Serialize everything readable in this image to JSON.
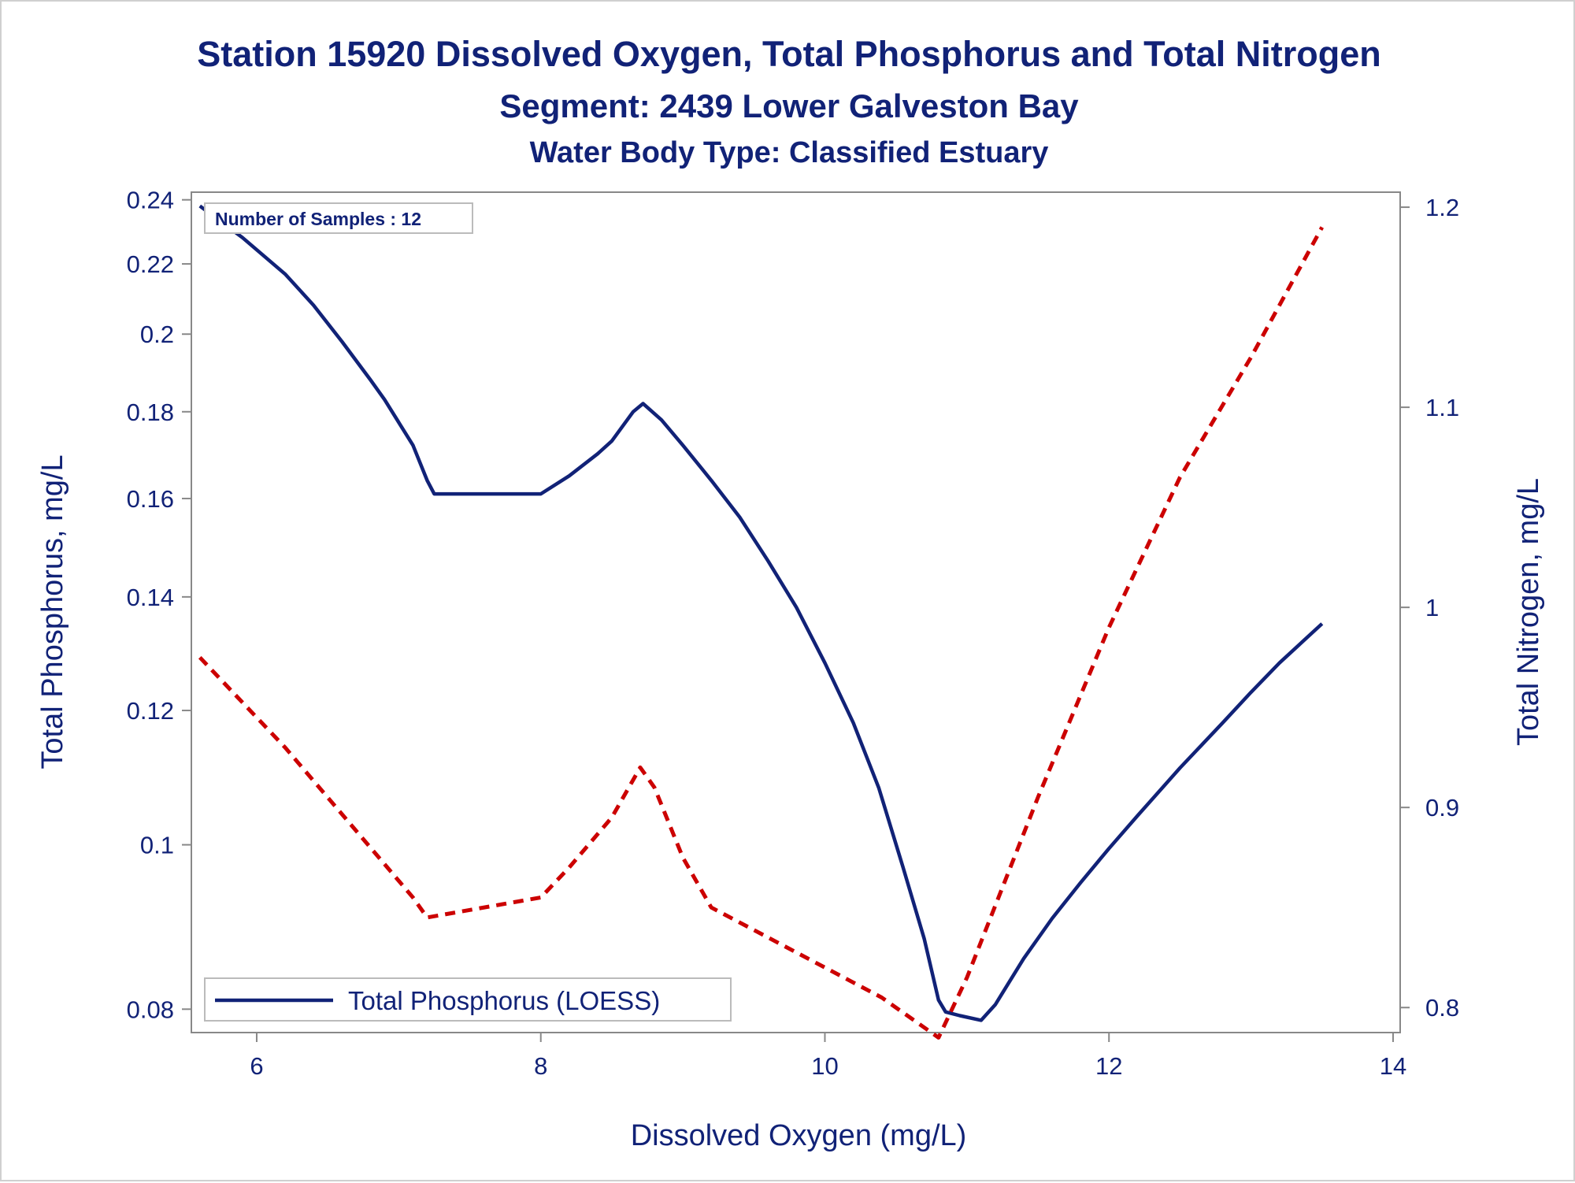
{
  "chart_data": {
    "type": "line",
    "title": "Station 15920  Dissolved Oxygen, Total Phosphorus and Total Nitrogen",
    "subtitle": "Segment: 2439  Lower Galveston Bay",
    "subtitle2": "Water Body Type: Classified Estuary",
    "xlabel": "Dissolved Oxygen (mg/L)",
    "ylabel": "Total Phosphorus, mg/L",
    "y2label": "Total Nitrogen, mg/L",
    "xlim": [
      5.54,
      14.05
    ],
    "ylim": [
      0.0775,
      0.2425
    ],
    "ylog": true,
    "y2lim": [
      0.7875,
      1.2075
    ],
    "xticks": [
      6,
      8,
      10,
      12,
      14
    ],
    "yticks": [
      0.08,
      0.1,
      0.12,
      0.14,
      0.16,
      0.18,
      0.2,
      0.22,
      0.24
    ],
    "y2ticks": [
      0.8,
      0.9,
      1,
      1.1,
      1.2
    ],
    "grid": false,
    "legend_position": "bottom-left",
    "annotation": "Number of Samples : 12",
    "colors": {
      "phosphorus": "#112277",
      "nitrogen": "#cc0000"
    },
    "series": [
      {
        "name": "Total Phosphorus (LOESS)",
        "axis": "left",
        "style": "solid",
        "x": [
          5.6,
          5.9,
          6.2,
          6.4,
          6.6,
          6.8,
          6.9,
          7.1,
          7.2,
          7.25,
          7.5,
          7.7,
          7.9,
          8.0,
          8.2,
          8.4,
          8.5,
          8.65,
          8.72,
          8.85,
          9.0,
          9.2,
          9.4,
          9.6,
          9.8,
          10.0,
          10.2,
          10.38,
          10.55,
          10.7,
          10.8,
          10.85,
          10.95,
          11.1,
          11.2,
          11.4,
          11.6,
          11.8,
          12.0,
          12.2,
          12.5,
          12.8,
          13.0,
          13.2,
          13.5
        ],
        "values": [
          0.238,
          0.228,
          0.217,
          0.208,
          0.198,
          0.188,
          0.183,
          0.172,
          0.164,
          0.161,
          0.161,
          0.161,
          0.161,
          0.161,
          0.165,
          0.17,
          0.173,
          0.18,
          0.182,
          0.178,
          0.172,
          0.164,
          0.156,
          0.147,
          0.138,
          0.128,
          0.118,
          0.108,
          0.097,
          0.088,
          0.081,
          0.0797,
          0.0793,
          0.0788,
          0.0805,
          0.0857,
          0.0905,
          0.095,
          0.0995,
          0.104,
          0.111,
          0.118,
          0.123,
          0.128,
          0.135
        ]
      },
      {
        "name": "Total Nitrogen",
        "axis": "right",
        "style": "dashed",
        "x": [
          5.6,
          6.2,
          6.8,
          7.1,
          7.2,
          8.0,
          8.2,
          8.5,
          8.7,
          8.8,
          9.0,
          9.2,
          10.0,
          10.4,
          10.8,
          11.0,
          11.5,
          12.0,
          12.5,
          13.0,
          13.5
        ],
        "values": [
          0.975,
          0.93,
          0.88,
          0.855,
          0.845,
          0.855,
          0.87,
          0.895,
          0.92,
          0.91,
          0.875,
          0.85,
          0.82,
          0.805,
          0.785,
          0.815,
          0.905,
          0.99,
          1.065,
          1.125,
          1.19
        ]
      }
    ]
  }
}
